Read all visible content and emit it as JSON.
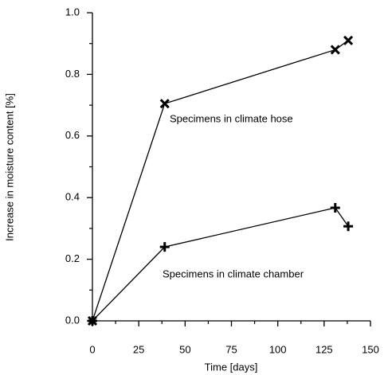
{
  "chart_data": {
    "type": "line",
    "xlabel": "Time [days]",
    "ylabel": "Increase in moisture content [%]",
    "series": [
      {
        "name": "Specimens in climate hose",
        "color": "#000000",
        "marker": "x",
        "x": [
          0,
          39,
          131,
          138
        ],
        "values": [
          0,
          0.705,
          0.88,
          0.91
        ]
      },
      {
        "name": "Specimens in climate chamber",
        "color": "#000000",
        "marker": "+",
        "x": [
          0,
          39,
          131,
          138
        ],
        "values": [
          0,
          0.24,
          0.367,
          0.307
        ]
      }
    ],
    "xlim": [
      0,
      150
    ],
    "xticks": [
      0,
      25,
      50,
      75,
      100,
      125,
      150
    ],
    "xminorticks": [
      12.5,
      37.5,
      62.5,
      87.5,
      112.5,
      137.5
    ],
    "ylim": [
      0,
      1
    ],
    "yticks": [
      {
        "value": 0,
        "label": "0.0"
      },
      0.2,
      0.4,
      0.6,
      0.8,
      {
        "value": 1,
        "label": "1.0"
      }
    ],
    "yminorticks": [
      0.1,
      0.3,
      0.5,
      0.7,
      0.9
    ],
    "grid": false
  }
}
